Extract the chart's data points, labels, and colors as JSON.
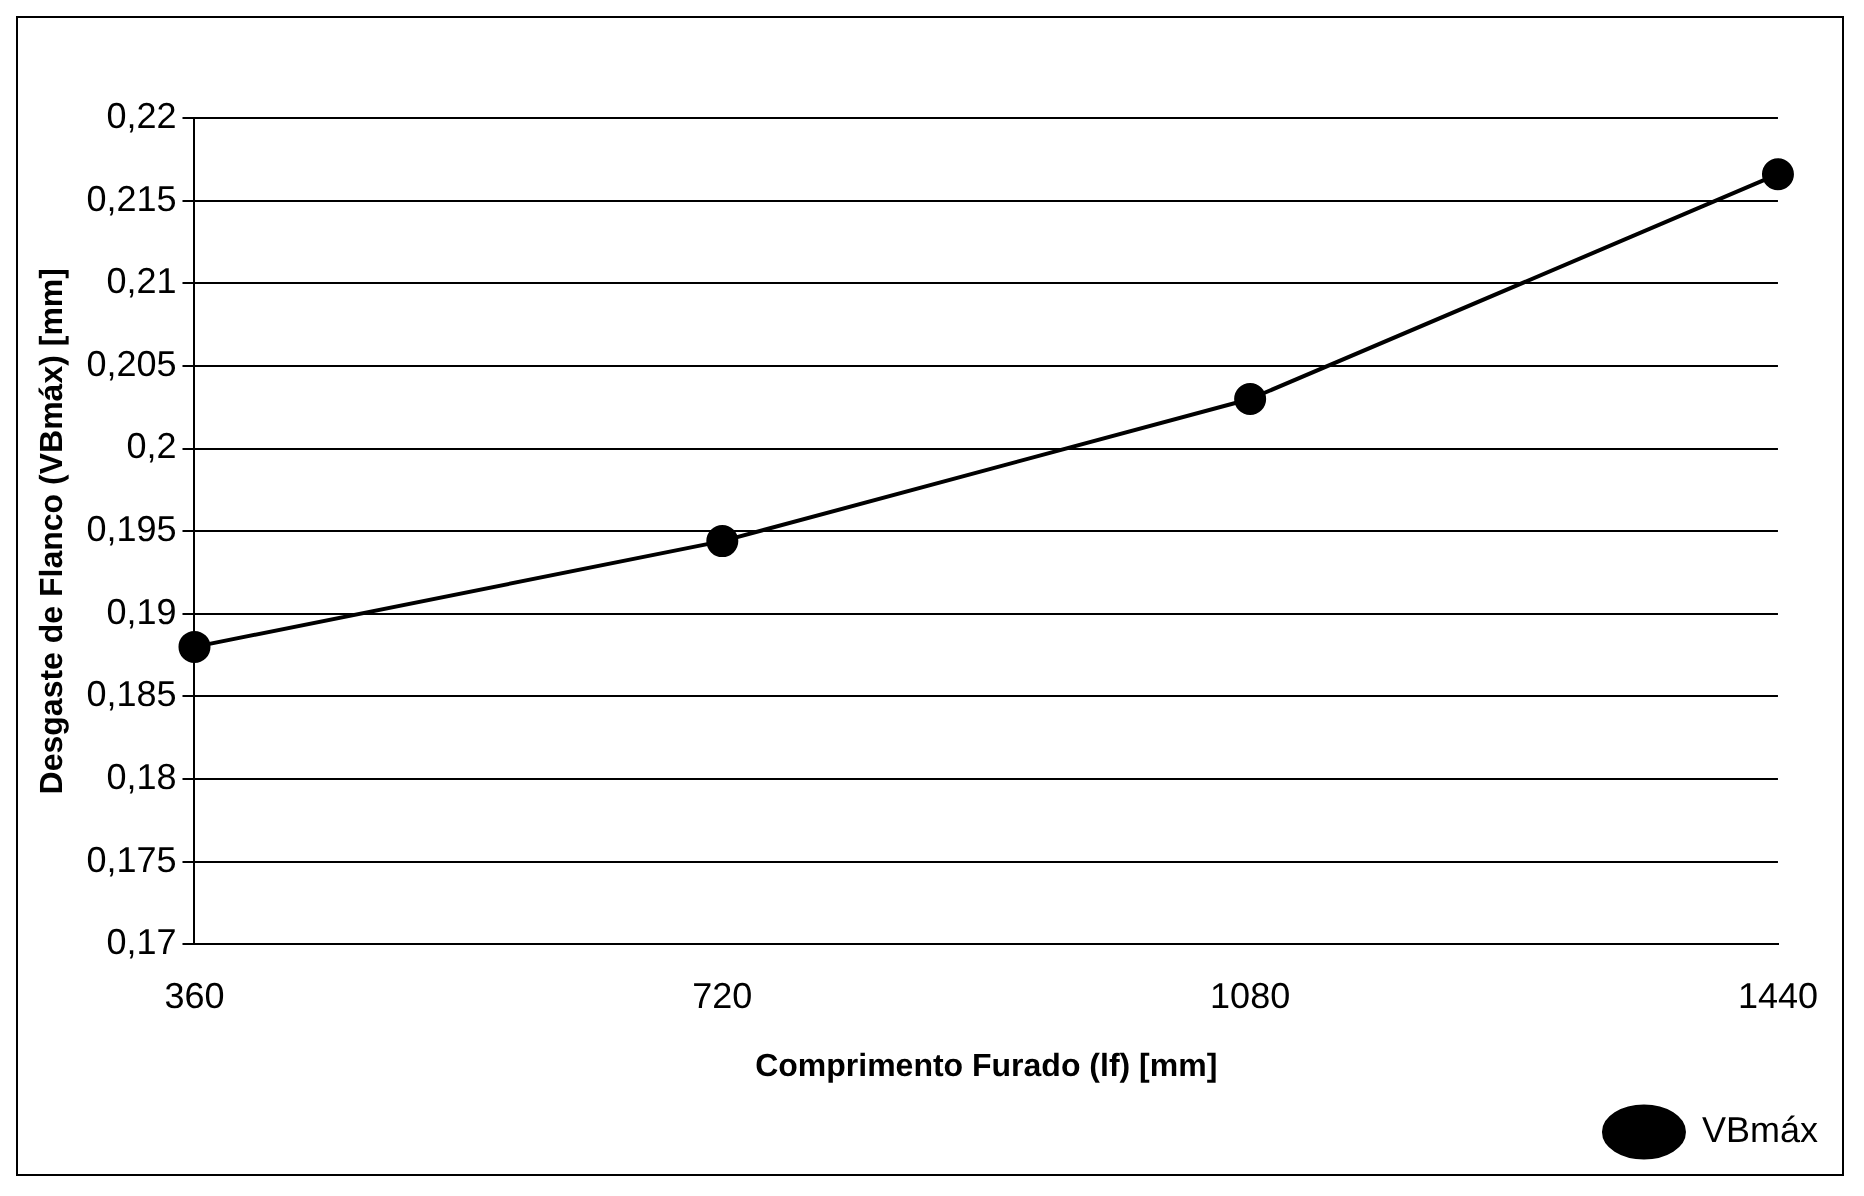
{
  "chart_data": {
    "type": "line",
    "categories": [
      "360",
      "720",
      "1080",
      "1440"
    ],
    "series": [
      {
        "name": "VBmáx",
        "color": "#000000",
        "values": [
          0.188,
          0.1944,
          0.203,
          0.2166
        ]
      }
    ],
    "xlabel": "Comprimento Furado (lf) [mm]",
    "ylabel": "Desgaste de Flanco (VBmáx) [mm]",
    "ylim": [
      0.17,
      0.22
    ],
    "yticks": [
      {
        "value": 0.17,
        "label": "0,17"
      },
      {
        "value": 0.175,
        "label": "0,175"
      },
      {
        "value": 0.18,
        "label": "0,18"
      },
      {
        "value": 0.185,
        "label": "0,185"
      },
      {
        "value": 0.19,
        "label": "0,19"
      },
      {
        "value": 0.195,
        "label": "0,195"
      },
      {
        "value": 0.2,
        "label": "0,2"
      },
      {
        "value": 0.205,
        "label": "0,205"
      },
      {
        "value": 0.21,
        "label": "0,21"
      },
      {
        "value": 0.215,
        "label": "0,215"
      },
      {
        "value": 0.22,
        "label": "0,22"
      }
    ],
    "grid": "y",
    "legend": "bottom right",
    "marker": "circle",
    "line_style": "solid"
  }
}
